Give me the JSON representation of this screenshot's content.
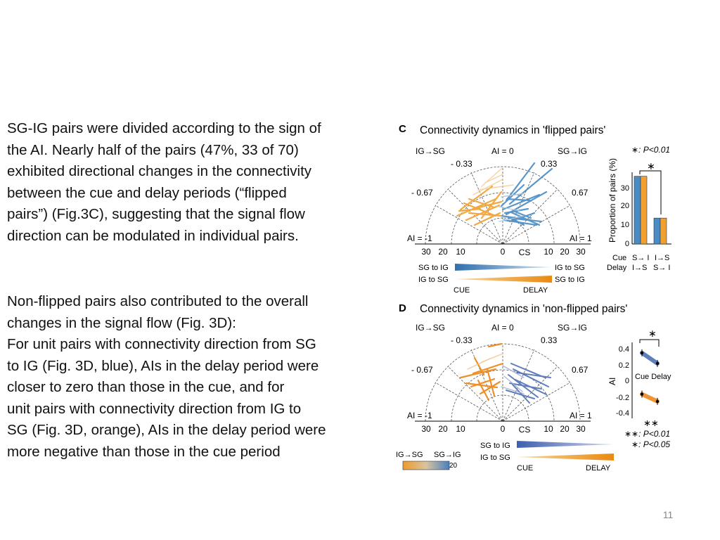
{
  "slide": {
    "paragraph1": [
      "SG-IG pairs were divided according to the sign of",
      "the AI. Nearly half of the pairs (47%, 33 of 70)",
      "exhibited directional changes in the connectivity",
      "between the cue and delay periods (“flipped",
      "pairs”) (Fig.3C), suggesting that the signal flow",
      "direction can be modulated in individual pairs."
    ],
    "paragraph2": [
      "Non-flipped pairs also contributed to the overall",
      "changes in the signal flow (Fig. 3D):",
      "For unit pairs with connectivity direction from SG",
      "to IG (Fig. 3D, blue), AIs in the delay period were",
      "closer to zero than those in the cue, and for",
      "unit pairs with connectivity direction from IG to",
      "SG (Fig. 3D, orange), AIs in the delay period were",
      "more negative than those in the cue period"
    ],
    "slide_number": "11"
  },
  "colors": {
    "blue": "#4a8bc4",
    "orange": "#f0a030",
    "panel_d_blue": "#4f6fb5",
    "panel_d_orange": "#ee8a1e"
  },
  "figure": {
    "panel_c": {
      "letter": "C",
      "title": "Connectivity dynamics in 'flipped pairs'",
      "label_left_dir": "IG→SG",
      "label_right_dir": "SG→IG",
      "ai_zero": "AI = 0",
      "ai_neg033": "- 0.33",
      "ai_pos033": "0.33",
      "ai_neg067": "- 0.67",
      "ai_pos067": "0.67",
      "ai_neg1": "AI = -1",
      "ai_pos1": "AI = 1",
      "cs_ticks": [
        "30",
        "20",
        "10",
        "0",
        "10",
        "20",
        "30"
      ],
      "cs_label": "CS",
      "legend_sg_to_ig": "SG to IG",
      "legend_ig_to_sg": "IG to SG",
      "legend_right_ig_to_sg": "IG to SG",
      "legend_right_sg_to_ig": "SG to IG",
      "cue": "CUE",
      "delay": "DELAY",
      "sig_note": "∗: P<0.01",
      "star": "∗",
      "bar_chart": {
        "ylabel": "Proportion of pairs (%)",
        "yticks": [
          "30",
          "20",
          "10",
          "0"
        ],
        "cue_row_label": "Cue",
        "delay_row_label": "Delay",
        "group1_cue": "S→ I",
        "group2_cue": "I→S",
        "group1_delay": "I→S",
        "group2_delay": "S→ I"
      }
    },
    "panel_d": {
      "letter": "D",
      "title": "Connectivity dynamics in 'non-flipped pairs'",
      "label_left_dir": "IG→SG",
      "label_right_dir": "SG→IG",
      "ai_zero": "AI = 0",
      "ai_neg033": "- 0.33",
      "ai_pos033": "0.33",
      "ai_neg067": "- 0.67",
      "ai_pos067": "0.67",
      "ai_neg1": "AI = -1",
      "ai_pos1": "AI = 1",
      "cs_ticks": [
        "30",
        "20",
        "10",
        "0",
        "10",
        "20",
        "30"
      ],
      "cs_label": "CS",
      "colorbar_left": "IG→SG",
      "colorbar_right": "SG→IG",
      "colorbar_value": "20",
      "legend_sg_to_ig": "SG to IG",
      "legend_ig_to_sg": "IG to SG",
      "cue": "CUE",
      "delay": "DELAY",
      "ai_chart": {
        "ylabel": "AI",
        "yticks": [
          "0.4",
          "0.2",
          "0",
          "-0.2",
          "-0.4"
        ],
        "xlabel": "Cue Delay",
        "star_top": "∗",
        "star_bottom": "∗∗",
        "note1": "∗∗: P<0.01",
        "note2": "∗: P<0.05"
      }
    }
  },
  "chart_data": [
    {
      "type": "bar",
      "title": "",
      "ylabel": "Proportion of pairs (%)",
      "ylim": [
        0,
        36
      ],
      "categories": [
        "Cue S→I / Delay I→S",
        "Cue I→S / Delay S→I"
      ],
      "values": [
        34,
        13
      ],
      "bar_fill": "blue and orange halves"
    },
    {
      "type": "line",
      "title": "",
      "ylabel": "AI",
      "ylim": [
        -0.45,
        0.45
      ],
      "categories": [
        "Cue",
        "Delay"
      ],
      "series": [
        {
          "values": [
            0.34,
            0.21
          ]
        },
        {
          "values": [
            -0.17,
            -0.26
          ]
        }
      ]
    }
  ]
}
